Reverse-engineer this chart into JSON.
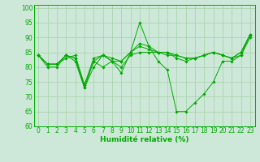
{
  "background_color": "#cde8d8",
  "grid_color": "#99cc99",
  "line_color": "#00aa00",
  "marker_color": "#00aa00",
  "xlabel": "Humidité relative (%)",
  "xlabel_fontsize": 6.5,
  "tick_fontsize": 5.5,
  "xlim": [
    -0.5,
    23.5
  ],
  "ylim": [
    60,
    101
  ],
  "yticks": [
    60,
    65,
    70,
    75,
    80,
    85,
    90,
    95,
    100
  ],
  "xticks": [
    0,
    1,
    2,
    3,
    4,
    5,
    6,
    7,
    8,
    9,
    10,
    11,
    12,
    13,
    14,
    15,
    16,
    17,
    18,
    19,
    20,
    21,
    22,
    23
  ],
  "series": [
    [
      84,
      80,
      80,
      84,
      82,
      73,
      80,
      84,
      82,
      78,
      85,
      95,
      87,
      82,
      79,
      65,
      65,
      68,
      71,
      75,
      82,
      82,
      84,
      90
    ],
    [
      84,
      81,
      81,
      83,
      84,
      74,
      82,
      80,
      82,
      80,
      84,
      85,
      85,
      85,
      85,
      83,
      82,
      83,
      84,
      85,
      84,
      83,
      84,
      91
    ],
    [
      84,
      81,
      81,
      84,
      83,
      73,
      82,
      84,
      82,
      82,
      85,
      87,
      86,
      85,
      85,
      84,
      83,
      83,
      84,
      85,
      84,
      83,
      85,
      91
    ],
    [
      84,
      81,
      81,
      84,
      83,
      74,
      83,
      84,
      83,
      82,
      85,
      88,
      87,
      85,
      84,
      84,
      83,
      83,
      84,
      85,
      84,
      83,
      85,
      91
    ]
  ]
}
